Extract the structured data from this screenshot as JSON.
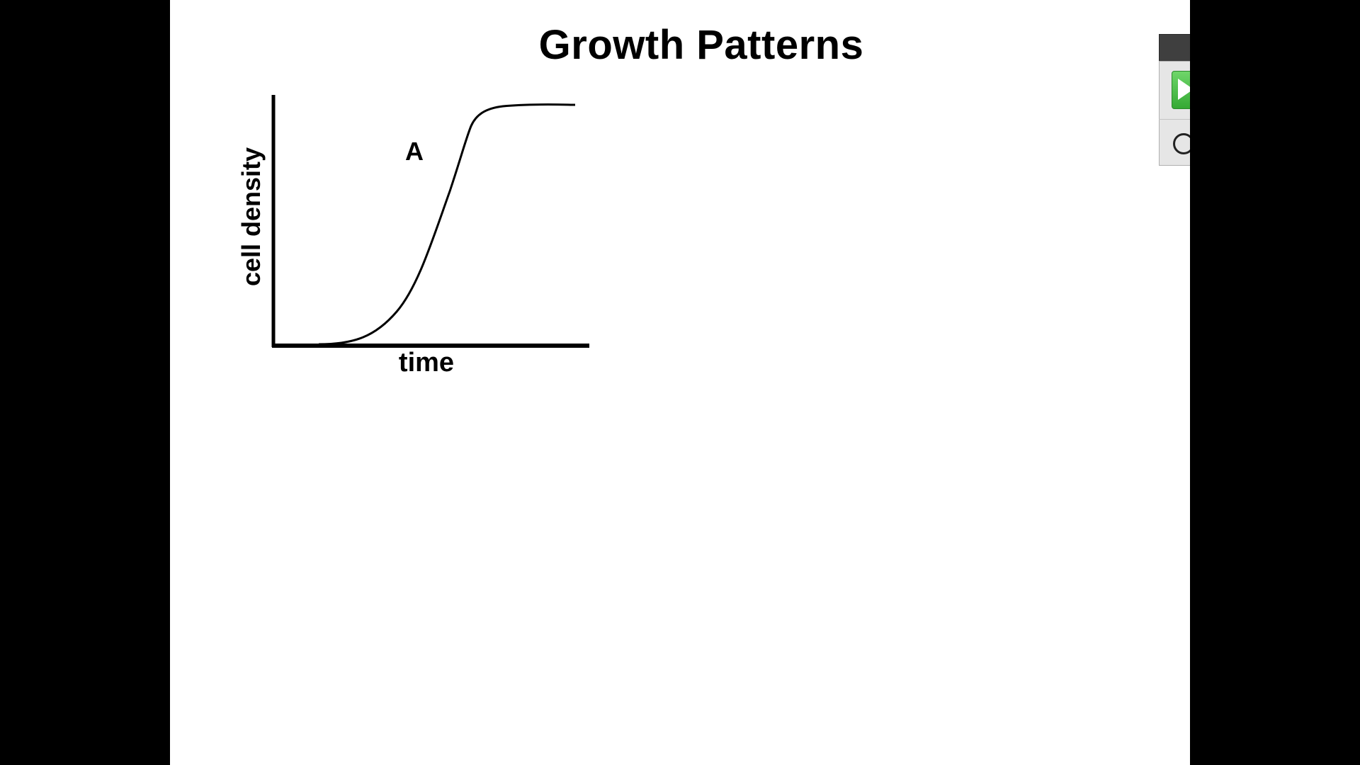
{
  "slide": {
    "title": "Growth Patterns"
  },
  "chart_data": {
    "type": "line",
    "title": "Growth Patterns",
    "xlabel": "time",
    "ylabel": "cell density",
    "annotations": [
      "A"
    ],
    "grid": false,
    "legend": "none",
    "shape": "sigmoid (S-shaped) growth curve: flat lag, steep rise, plateau",
    "series": [
      {
        "label": "A"
      }
    ]
  },
  "toolbar": {
    "play_icon": "play-icon",
    "circle_icon": "circle-icon"
  },
  "colors": {
    "background": "#ffffff",
    "letterbox": "#000000",
    "curve": "#000000",
    "play_green": "#35a934",
    "toolbar_header": "#3f3f3f"
  }
}
